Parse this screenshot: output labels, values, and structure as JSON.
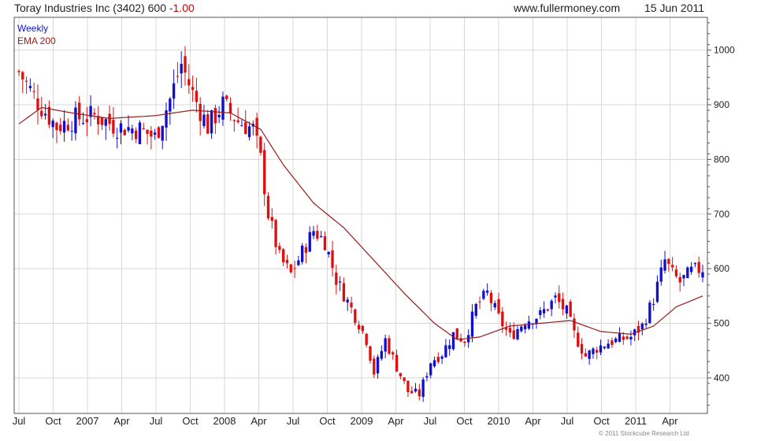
{
  "header": {
    "title": "Toray Industries Inc (3402) 600",
    "change": "-1.00",
    "site": "www.fullermoney.com",
    "date": "15 Jun 2011"
  },
  "footer": {
    "copyright": "© 2011 Stockcube Research Ltd"
  },
  "colors": {
    "up": "#1010cc",
    "down": "#dd1010",
    "ema": "#9a1a1a",
    "grid": "#d8d8d8",
    "axis": "#555555"
  },
  "chart_data": {
    "type": "candlestick",
    "frequency": "Weekly",
    "legend": [
      "Weekly",
      "EMA 200"
    ],
    "legend_position": "top-left",
    "grid": true,
    "ylim": [
      335,
      1060
    ],
    "yticks": [
      400,
      500,
      600,
      700,
      800,
      900,
      1000
    ],
    "y_axis_side": "right",
    "x_tick_labels": [
      "Jul",
      "Oct",
      "2007",
      "Apr",
      "Jul",
      "Oct",
      "2008",
      "Apr",
      "Jul",
      "Oct",
      "2009",
      "Apr",
      "Jul",
      "Oct",
      "2010",
      "Apr",
      "Jul",
      "Oct",
      "2011",
      "Apr"
    ],
    "close_anchors": [
      {
        "week": 0,
        "close": 960
      },
      {
        "week": 5,
        "close": 905
      },
      {
        "week": 10,
        "close": 860
      },
      {
        "week": 15,
        "close": 875
      },
      {
        "week": 20,
        "close": 880
      },
      {
        "week": 26,
        "close": 860
      },
      {
        "week": 32,
        "close": 855
      },
      {
        "week": 36,
        "close": 840
      },
      {
        "week": 40,
        "close": 910
      },
      {
        "week": 43,
        "close": 975
      },
      {
        "week": 46,
        "close": 920
      },
      {
        "week": 50,
        "close": 860
      },
      {
        "week": 54,
        "close": 900
      },
      {
        "week": 58,
        "close": 870
      },
      {
        "week": 62,
        "close": 855
      },
      {
        "week": 64,
        "close": 800
      },
      {
        "week": 66,
        "close": 700
      },
      {
        "week": 69,
        "close": 620
      },
      {
        "week": 72,
        "close": 590
      },
      {
        "week": 75,
        "close": 630
      },
      {
        "week": 78,
        "close": 670
      },
      {
        "week": 81,
        "close": 650
      },
      {
        "week": 84,
        "close": 580
      },
      {
        "week": 87,
        "close": 540
      },
      {
        "week": 90,
        "close": 500
      },
      {
        "week": 92,
        "close": 470
      },
      {
        "week": 94,
        "close": 410
      },
      {
        "week": 97,
        "close": 470
      },
      {
        "week": 100,
        "close": 420
      },
      {
        "week": 103,
        "close": 375
      },
      {
        "week": 106,
        "close": 370
      },
      {
        "week": 109,
        "close": 430
      },
      {
        "week": 112,
        "close": 445
      },
      {
        "week": 115,
        "close": 480
      },
      {
        "week": 118,
        "close": 470
      },
      {
        "week": 121,
        "close": 530
      },
      {
        "week": 124,
        "close": 555
      },
      {
        "week": 127,
        "close": 510
      },
      {
        "week": 130,
        "close": 475
      },
      {
        "week": 134,
        "close": 505
      },
      {
        "week": 138,
        "close": 515
      },
      {
        "week": 142,
        "close": 545
      },
      {
        "week": 145,
        "close": 520
      },
      {
        "week": 147,
        "close": 480
      },
      {
        "week": 150,
        "close": 440
      },
      {
        "week": 153,
        "close": 455
      },
      {
        "week": 156,
        "close": 465
      },
      {
        "week": 159,
        "close": 470
      },
      {
        "week": 162,
        "close": 475
      },
      {
        "week": 165,
        "close": 495
      },
      {
        "week": 168,
        "close": 545
      },
      {
        "week": 171,
        "close": 615
      },
      {
        "week": 173,
        "close": 590
      },
      {
        "week": 175,
        "close": 575
      },
      {
        "week": 178,
        "close": 595
      },
      {
        "week": 181,
        "close": 600
      }
    ],
    "ema_anchors": [
      {
        "week": 0,
        "value": 865
      },
      {
        "week": 6,
        "value": 895
      },
      {
        "week": 14,
        "value": 885
      },
      {
        "week": 24,
        "value": 875
      },
      {
        "week": 36,
        "value": 880
      },
      {
        "week": 46,
        "value": 890
      },
      {
        "week": 56,
        "value": 885
      },
      {
        "week": 64,
        "value": 855
      },
      {
        "week": 70,
        "value": 790
      },
      {
        "week": 78,
        "value": 720
      },
      {
        "week": 86,
        "value": 675
      },
      {
        "week": 94,
        "value": 615
      },
      {
        "week": 102,
        "value": 555
      },
      {
        "week": 110,
        "value": 500
      },
      {
        "week": 116,
        "value": 470
      },
      {
        "week": 122,
        "value": 475
      },
      {
        "week": 130,
        "value": 495
      },
      {
        "week": 138,
        "value": 500
      },
      {
        "week": 146,
        "value": 505
      },
      {
        "week": 154,
        "value": 485
      },
      {
        "week": 162,
        "value": 480
      },
      {
        "week": 168,
        "value": 495
      },
      {
        "week": 174,
        "value": 530
      },
      {
        "week": 181,
        "value": 550
      }
    ],
    "weeks": 182
  }
}
